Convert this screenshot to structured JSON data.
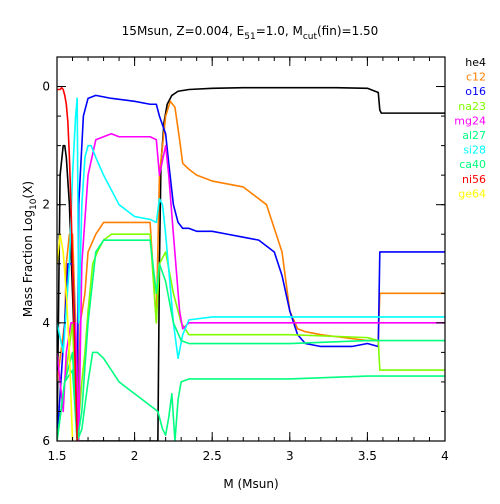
{
  "chart_data": {
    "type": "line",
    "title": {
      "prefix": "15Msun, Z=0.004, E",
      "e_sub": "51",
      "mid": "=1.0, M",
      "m_sub": "cut",
      "suffix": "(fin)=1.50"
    },
    "xlabel": "M (Msun)",
    "ylabel": {
      "prefix": "Mass Fraction Log",
      "sub": "10",
      "suffix": "(X)"
    },
    "xlim": [
      1.5,
      4.0
    ],
    "ylim": [
      -6,
      0.5
    ],
    "xticks": [
      1.5,
      2,
      2.5,
      3,
      3.5,
      4
    ],
    "xtick_labels": [
      "1.5",
      "2",
      "2.5",
      "3",
      "3.5",
      "4"
    ],
    "yticks": [
      0,
      -2,
      -4,
      -6
    ],
    "ytick_labels": [
      "0",
      "2",
      "4",
      "6"
    ],
    "grid": false,
    "legend_placement": "right",
    "series": [
      {
        "name": "he4",
        "color": "#000000",
        "x": [
          1.5,
          1.52,
          1.54,
          1.55,
          1.56,
          1.58,
          1.6,
          1.62,
          1.63,
          1.64,
          2.15,
          2.16,
          2.17,
          2.19,
          2.21,
          2.24,
          2.28,
          2.35,
          2.5,
          2.7,
          3.0,
          3.3,
          3.5,
          3.57,
          3.58,
          3.59,
          4.0
        ],
        "y": [
          -6,
          -1.5,
          -1.0,
          -1.0,
          -1.2,
          -2.0,
          -3.5,
          -5.0,
          -6.0,
          -6.0,
          -6.0,
          -3.0,
          -1.3,
          -0.6,
          -0.3,
          -0.15,
          -0.08,
          -0.05,
          -0.03,
          -0.02,
          -0.02,
          -0.02,
          -0.03,
          -0.1,
          -0.4,
          -0.45,
          -0.45
        ]
      },
      {
        "name": "c12",
        "color": "#ff8000",
        "x": [
          1.5,
          1.55,
          1.56,
          1.58,
          1.6,
          1.62,
          1.63,
          1.65,
          1.68,
          1.7,
          1.75,
          1.8,
          1.85,
          1.9,
          2.0,
          2.1,
          2.14,
          2.16,
          2.18,
          2.2,
          2.23,
          2.26,
          2.29,
          2.31,
          2.35,
          2.4,
          2.5,
          2.7,
          2.85,
          2.95,
          3.0,
          3.05,
          3.1,
          3.2,
          3.35,
          3.5,
          3.57,
          3.58,
          3.6,
          4.0
        ],
        "y": [
          -5.0,
          -4.0,
          -3.0,
          -2.5,
          -2.5,
          -4.0,
          -6.0,
          -4.0,
          -3.5,
          -2.8,
          -2.5,
          -2.3,
          -2.3,
          -2.3,
          -2.3,
          -2.3,
          -4.0,
          -1.5,
          -1.0,
          -0.5,
          -0.25,
          -0.35,
          -0.9,
          -1.3,
          -1.4,
          -1.5,
          -1.6,
          -1.7,
          -2.0,
          -2.8,
          -3.8,
          -4.1,
          -4.15,
          -4.2,
          -4.25,
          -4.3,
          -4.3,
          -3.5,
          -3.5,
          -3.5
        ]
      },
      {
        "name": "o16",
        "color": "#0000ff",
        "x": [
          1.5,
          1.55,
          1.57,
          1.6,
          1.62,
          1.63,
          1.64,
          1.67,
          1.7,
          1.75,
          1.85,
          2.0,
          2.1,
          2.14,
          2.16,
          2.2,
          2.22,
          2.25,
          2.28,
          2.31,
          2.35,
          2.4,
          2.5,
          2.6,
          2.7,
          2.8,
          2.9,
          2.95,
          3.0,
          3.05,
          3.1,
          3.2,
          3.3,
          3.4,
          3.5,
          3.57,
          3.58,
          3.59,
          4.0
        ],
        "y": [
          -6.0,
          -4.0,
          -3.0,
          -3.0,
          -4.5,
          -6.0,
          -2.0,
          -0.5,
          -0.2,
          -0.15,
          -0.2,
          -0.25,
          -0.3,
          -0.3,
          -0.5,
          -0.8,
          -1.3,
          -2.0,
          -2.3,
          -2.4,
          -2.4,
          -2.45,
          -2.45,
          -2.5,
          -2.55,
          -2.6,
          -2.8,
          -3.2,
          -3.8,
          -4.2,
          -4.35,
          -4.4,
          -4.4,
          -4.4,
          -4.35,
          -4.4,
          -2.8,
          -2.8,
          -2.8
        ]
      },
      {
        "name": "na23",
        "color": "#80ff00",
        "x": [
          1.5,
          1.55,
          1.6,
          1.63,
          1.66,
          1.68,
          1.7,
          1.73,
          1.76,
          1.78,
          1.8,
          1.85,
          1.9,
          2.0,
          2.1,
          2.14,
          2.16,
          2.2,
          2.25,
          2.3,
          2.35,
          2.5,
          3.0,
          3.5,
          3.57,
          3.58,
          4.0
        ],
        "y": [
          -6.0,
          -5.0,
          -4.0,
          -6.0,
          -5.0,
          -4.5,
          -3.8,
          -3.0,
          -2.8,
          -2.7,
          -2.6,
          -2.5,
          -2.5,
          -2.5,
          -2.5,
          -4.0,
          -3.0,
          -2.8,
          -3.5,
          -4.0,
          -4.2,
          -4.2,
          -4.2,
          -4.25,
          -4.3,
          -4.8,
          -4.8
        ]
      },
      {
        "name": "mg24",
        "color": "#ff00ff",
        "x": [
          1.5,
          1.54,
          1.56,
          1.59,
          1.62,
          1.64,
          1.66,
          1.7,
          1.75,
          1.8,
          1.85,
          1.9,
          2.0,
          2.1,
          2.14,
          2.16,
          2.2,
          2.22,
          2.25,
          2.29,
          2.31,
          2.35,
          2.5,
          3.0,
          3.5,
          4.0
        ],
        "y": [
          -4.5,
          -5.5,
          -4.5,
          -4.0,
          -4.0,
          -6.0,
          -3.0,
          -1.5,
          -0.9,
          -0.85,
          -0.8,
          -0.85,
          -0.85,
          -0.85,
          -0.9,
          -1.5,
          -1.0,
          -1.5,
          -2.5,
          -3.8,
          -4.1,
          -4.0,
          -4.0,
          -4.0,
          -4.0,
          -4.0
        ]
      },
      {
        "name": "al27",
        "color": "#00ff80",
        "x": [
          1.5,
          1.55,
          1.6,
          1.63,
          1.66,
          1.7,
          1.73,
          1.76,
          1.8,
          1.85,
          1.9,
          2.0,
          2.1,
          2.15,
          2.18,
          2.2,
          2.22,
          2.24,
          2.26,
          2.28,
          2.3,
          2.35,
          2.5,
          3.0,
          3.5,
          4.0
        ],
        "y": [
          -6.0,
          -5.0,
          -4.8,
          -6.0,
          -5.8,
          -5.0,
          -4.5,
          -4.5,
          -4.6,
          -4.8,
          -5.0,
          -5.2,
          -5.4,
          -5.5,
          -5.8,
          -5.9,
          -5.6,
          -5.2,
          -6.0,
          -5.3,
          -5.0,
          -4.95,
          -4.95,
          -4.95,
          -4.9,
          -4.9
        ]
      },
      {
        "name": "si28",
        "color": "#00ffff",
        "x": [
          1.5,
          1.54,
          1.58,
          1.6,
          1.62,
          1.63,
          1.64,
          1.66,
          1.68,
          1.7,
          1.72,
          1.75,
          1.8,
          1.9,
          2.0,
          2.1,
          2.14,
          2.16,
          2.18,
          2.2,
          2.25,
          2.28,
          2.31,
          2.35,
          2.5,
          3.0,
          3.5,
          4.0
        ],
        "y": [
          -4.0,
          -4.5,
          -3.0,
          -1.5,
          -0.5,
          -0.2,
          -4.0,
          -2.0,
          -1.2,
          -1.0,
          -1.0,
          -1.2,
          -1.5,
          -2.0,
          -2.2,
          -2.25,
          -2.3,
          -1.9,
          -2.0,
          -2.5,
          -4.0,
          -4.6,
          -4.2,
          -3.95,
          -3.9,
          -3.9,
          -3.9,
          -3.9
        ]
      },
      {
        "name": "ca40",
        "color": "#00ff80",
        "x": [
          1.5,
          1.55,
          1.6,
          1.63,
          1.66,
          1.7,
          1.75,
          1.8,
          1.85,
          1.9,
          2.0,
          2.1,
          2.14,
          2.16,
          2.2,
          2.25,
          2.3,
          2.35,
          2.5,
          3.0,
          3.5,
          4.0
        ],
        "y": [
          -6.0,
          -5.0,
          -4.5,
          -6.0,
          -5.5,
          -4.0,
          -2.8,
          -2.6,
          -2.6,
          -2.6,
          -2.6,
          -2.6,
          -3.5,
          -3.0,
          -3.3,
          -4.0,
          -4.3,
          -4.35,
          -4.35,
          -4.35,
          -4.3,
          -4.3
        ]
      },
      {
        "name": "ni56",
        "color": "#ff0000",
        "x": [
          1.5,
          1.52,
          1.53,
          1.54,
          1.55,
          1.56,
          1.57,
          1.58,
          1.59,
          1.6,
          1.61,
          1.62,
          1.63
        ],
        "y": [
          -0.05,
          -0.05,
          -0.02,
          -0.05,
          -0.15,
          -0.3,
          -0.6,
          -1.2,
          -2.0,
          -3.0,
          -4.0,
          -5.0,
          -6.0
        ]
      },
      {
        "name": "ge64",
        "color": "#ffff00",
        "x": [
          1.5,
          1.52,
          1.54,
          1.56,
          1.58,
          1.6
        ],
        "y": [
          -3.0,
          -2.5,
          -2.8,
          -3.5,
          -4.5,
          -6.0
        ]
      }
    ]
  }
}
